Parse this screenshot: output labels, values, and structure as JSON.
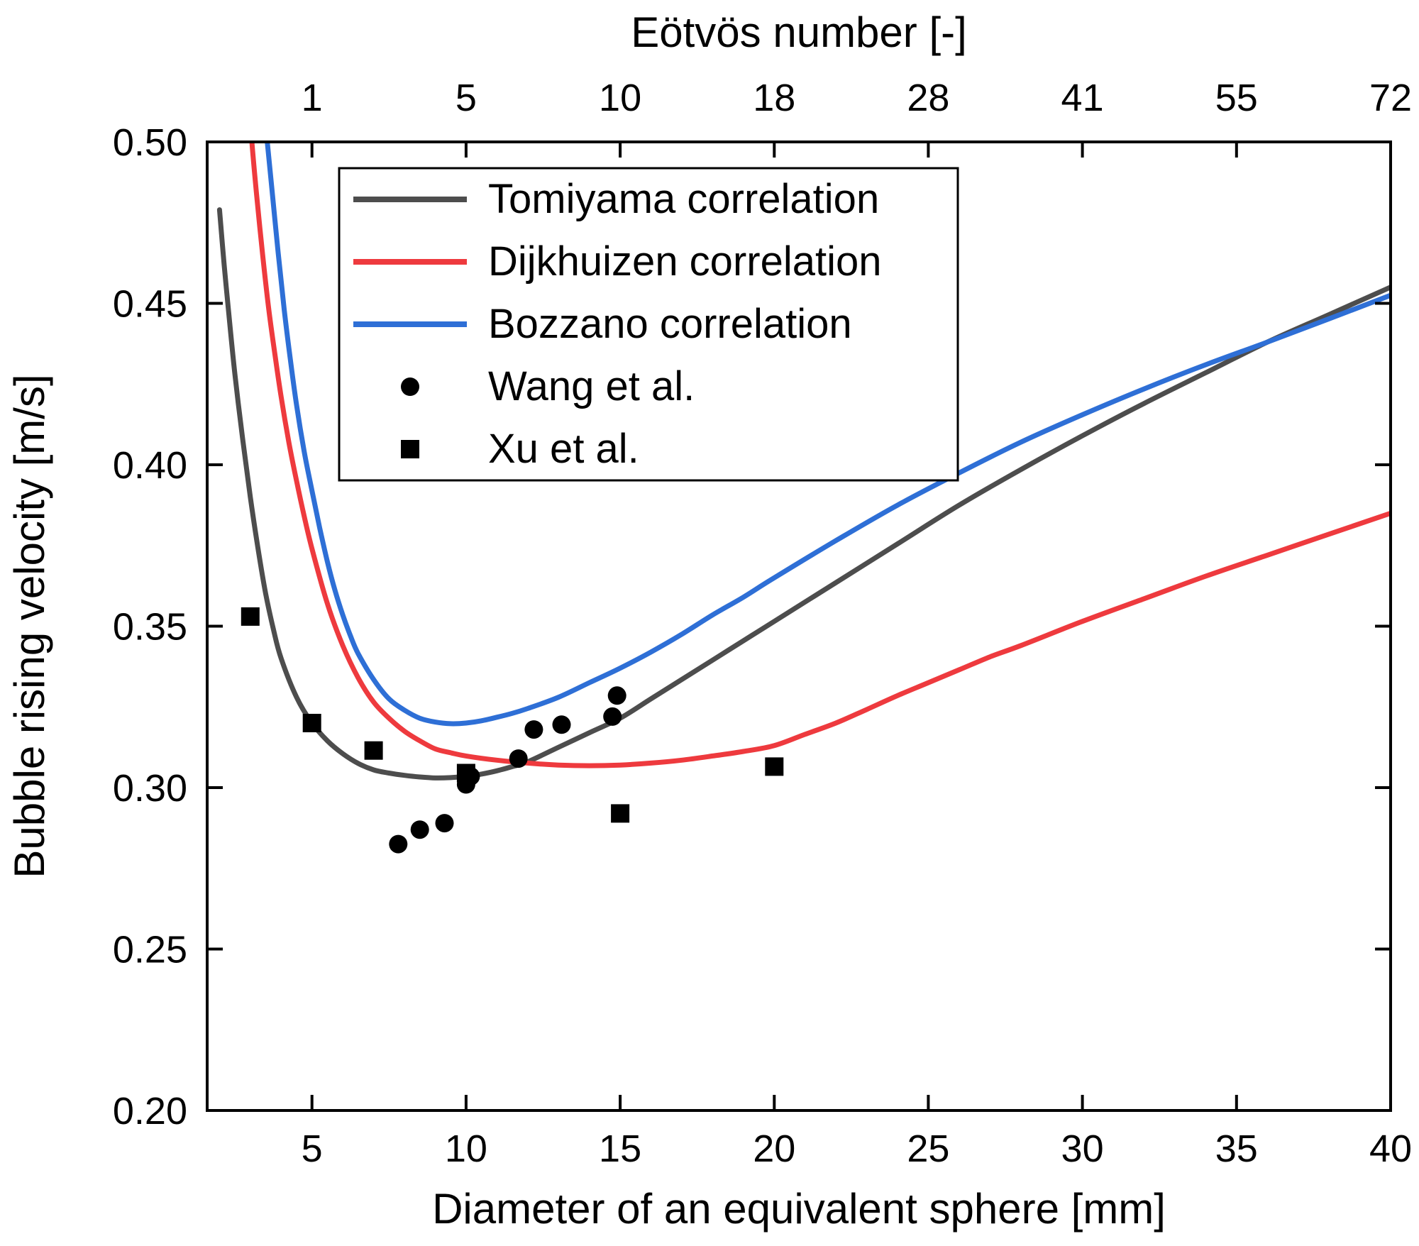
{
  "chart_data": {
    "type": "line",
    "title": "",
    "top_axis": {
      "label": "Eötvös number [-]",
      "tick_positions_mm": [
        5,
        10,
        15,
        20,
        25,
        30,
        35,
        40
      ],
      "tick_labels": [
        "1",
        "5",
        "10",
        "18",
        "28",
        "41",
        "55",
        "72"
      ]
    },
    "x_axis": {
      "label": "Diameter of an equivalent sphere [mm]",
      "range": [
        1.6,
        40
      ],
      "ticks": [
        5,
        10,
        15,
        20,
        25,
        30,
        35,
        40
      ]
    },
    "y_axis": {
      "label": "Bubble rising velocity [m/s]",
      "range": [
        0.2,
        0.5
      ],
      "ticks": [
        0.2,
        0.25,
        0.3,
        0.35,
        0.4,
        0.45,
        0.5
      ]
    },
    "legend": {
      "position": "upper-left",
      "border": "#000000",
      "fill": "#ffffff"
    },
    "series": [
      {
        "name": "Tomiyama correlation",
        "type": "line",
        "color": "#4d4d4d",
        "points": [
          [
            2.0,
            0.479
          ],
          [
            2.15,
            0.462
          ],
          [
            2.3,
            0.447
          ],
          [
            2.5,
            0.428
          ],
          [
            2.75,
            0.408
          ],
          [
            3.0,
            0.39
          ],
          [
            3.25,
            0.374
          ],
          [
            3.5,
            0.36
          ],
          [
            3.75,
            0.349
          ],
          [
            4.0,
            0.34
          ],
          [
            4.5,
            0.328
          ],
          [
            5.0,
            0.32
          ],
          [
            5.5,
            0.3145
          ],
          [
            6.0,
            0.3105
          ],
          [
            6.5,
            0.3075
          ],
          [
            7.0,
            0.3055
          ],
          [
            7.5,
            0.3045
          ],
          [
            8.0,
            0.3038
          ],
          [
            8.5,
            0.3033
          ],
          [
            9.0,
            0.303
          ],
          [
            9.5,
            0.3031
          ],
          [
            10.0,
            0.3035
          ],
          [
            10.5,
            0.3042
          ],
          [
            11.0,
            0.3052
          ],
          [
            11.5,
            0.3065
          ],
          [
            12.0,
            0.308
          ],
          [
            13.0,
            0.3125
          ],
          [
            14.0,
            0.317
          ],
          [
            15.0,
            0.3215
          ],
          [
            16.0,
            0.3275
          ],
          [
            17.0,
            0.3335
          ],
          [
            18.0,
            0.3395
          ],
          [
            19.0,
            0.3455
          ],
          [
            20.0,
            0.3515
          ],
          [
            22.0,
            0.3635
          ],
          [
            24.0,
            0.3755
          ],
          [
            26.0,
            0.3875
          ],
          [
            28.0,
            0.3985
          ],
          [
            30.0,
            0.409
          ],
          [
            32.0,
            0.419
          ],
          [
            34.0,
            0.4285
          ],
          [
            36.0,
            0.438
          ],
          [
            38.0,
            0.4465
          ],
          [
            40.0,
            0.455
          ]
        ]
      },
      {
        "name": "Dijkhuizen correlation",
        "type": "line",
        "color": "#ee3a3e",
        "points": [
          [
            2.9,
            0.52
          ],
          [
            3.05,
            0.5
          ],
          [
            3.2,
            0.484
          ],
          [
            3.4,
            0.465
          ],
          [
            3.6,
            0.448
          ],
          [
            3.8,
            0.434
          ],
          [
            4.0,
            0.421
          ],
          [
            4.25,
            0.407
          ],
          [
            4.5,
            0.395
          ],
          [
            4.75,
            0.384
          ],
          [
            5.0,
            0.374
          ],
          [
            5.5,
            0.357
          ],
          [
            6.0,
            0.344
          ],
          [
            6.5,
            0.334
          ],
          [
            7.0,
            0.3265
          ],
          [
            7.5,
            0.3215
          ],
          [
            8.0,
            0.3175
          ],
          [
            8.5,
            0.3145
          ],
          [
            9.0,
            0.312
          ],
          [
            9.5,
            0.3108
          ],
          [
            10.0,
            0.3098
          ],
          [
            11.0,
            0.3085
          ],
          [
            12.0,
            0.3076
          ],
          [
            13.0,
            0.307
          ],
          [
            14.0,
            0.3068
          ],
          [
            15.0,
            0.307
          ],
          [
            16.0,
            0.3076
          ],
          [
            17.0,
            0.3085
          ],
          [
            18.0,
            0.3098
          ],
          [
            19.0,
            0.3112
          ],
          [
            20.0,
            0.313
          ],
          [
            21.0,
            0.3165
          ],
          [
            22.0,
            0.32
          ],
          [
            23.0,
            0.3242
          ],
          [
            24.0,
            0.3285
          ],
          [
            25.0,
            0.3325
          ],
          [
            26.0,
            0.3365
          ],
          [
            27.0,
            0.3405
          ],
          [
            28.0,
            0.344
          ],
          [
            30.0,
            0.3515
          ],
          [
            32.0,
            0.3585
          ],
          [
            34.0,
            0.3655
          ],
          [
            36.0,
            0.372
          ],
          [
            38.0,
            0.3785
          ],
          [
            40.0,
            0.385
          ]
        ]
      },
      {
        "name": "Bozzano correlation",
        "type": "line",
        "color": "#2e6fd6",
        "points": [
          [
            3.4,
            0.515
          ],
          [
            3.55,
            0.5
          ],
          [
            3.7,
            0.4855
          ],
          [
            3.9,
            0.466
          ],
          [
            4.1,
            0.448
          ],
          [
            4.3,
            0.4325
          ],
          [
            4.5,
            0.4185
          ],
          [
            4.75,
            0.404
          ],
          [
            5.0,
            0.392
          ],
          [
            5.25,
            0.3805
          ],
          [
            5.5,
            0.37
          ],
          [
            5.75,
            0.361
          ],
          [
            6.0,
            0.3535
          ],
          [
            6.25,
            0.347
          ],
          [
            6.5,
            0.3415
          ],
          [
            7.0,
            0.3335
          ],
          [
            7.5,
            0.3275
          ],
          [
            8.0,
            0.324
          ],
          [
            8.5,
            0.3215
          ],
          [
            9.0,
            0.3203
          ],
          [
            9.5,
            0.3198
          ],
          [
            10.0,
            0.32
          ],
          [
            10.5,
            0.3207
          ],
          [
            11.0,
            0.3218
          ],
          [
            11.5,
            0.323
          ],
          [
            12.0,
            0.3245
          ],
          [
            13.0,
            0.328
          ],
          [
            14.0,
            0.3325
          ],
          [
            15.0,
            0.337
          ],
          [
            16.0,
            0.342
          ],
          [
            17.0,
            0.3475
          ],
          [
            18.0,
            0.3535
          ],
          [
            19.0,
            0.359
          ],
          [
            20.0,
            0.365
          ],
          [
            22.0,
            0.3765
          ],
          [
            24.0,
            0.3875
          ],
          [
            26.0,
            0.3975
          ],
          [
            28.0,
            0.407
          ],
          [
            30.0,
            0.4155
          ],
          [
            32.0,
            0.4235
          ],
          [
            34.0,
            0.431
          ],
          [
            36.0,
            0.438
          ],
          [
            38.0,
            0.4452
          ],
          [
            40.0,
            0.4525
          ]
        ]
      },
      {
        "name": "Wang et al.",
        "type": "scatter",
        "marker": "circle",
        "color": "#000000",
        "points": [
          [
            7.8,
            0.2825
          ],
          [
            8.5,
            0.287
          ],
          [
            9.3,
            0.289
          ],
          [
            10.0,
            0.301
          ],
          [
            10.15,
            0.3035
          ],
          [
            11.7,
            0.309
          ],
          [
            12.2,
            0.318
          ],
          [
            13.1,
            0.3195
          ],
          [
            14.75,
            0.322
          ],
          [
            14.9,
            0.3285
          ]
        ]
      },
      {
        "name": "Xu et al.",
        "type": "scatter",
        "marker": "square",
        "color": "#000000",
        "points": [
          [
            3.0,
            0.353
          ],
          [
            5.0,
            0.32
          ],
          [
            7.0,
            0.3115
          ],
          [
            10.0,
            0.3045
          ],
          [
            15.0,
            0.292
          ],
          [
            20.0,
            0.3065
          ]
        ]
      }
    ]
  }
}
